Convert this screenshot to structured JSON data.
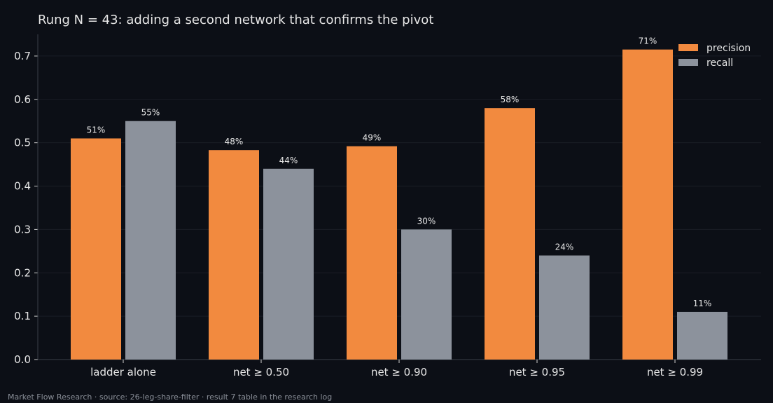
{
  "chart_data": {
    "type": "bar",
    "title": "Rung N = 43: adding a second network that confirms the pivot",
    "categories": [
      "ladder alone",
      "net ≥ 0.50",
      "net ≥ 0.90",
      "net ≥ 0.95",
      "net ≥ 0.99"
    ],
    "series": [
      {
        "name": "precision",
        "color": "#f28a3f",
        "values": [
          0.51,
          0.483,
          0.492,
          0.58,
          0.715
        ],
        "labels": [
          "51%",
          "48%",
          "49%",
          "58%",
          "71%"
        ]
      },
      {
        "name": "recall",
        "color": "#8c929c",
        "values": [
          0.55,
          0.44,
          0.3,
          0.24,
          0.11
        ],
        "labels": [
          "55%",
          "44%",
          "30%",
          "24%",
          "11%"
        ]
      }
    ],
    "ylim": [
      0,
      0.75
    ],
    "yticks": [
      0.0,
      0.1,
      0.2,
      0.3,
      0.4,
      0.5,
      0.6,
      0.7
    ],
    "ytick_labels": [
      "0.0",
      "0.1",
      "0.2",
      "0.3",
      "0.4",
      "0.5",
      "0.6",
      "0.7"
    ],
    "xlabel": "",
    "ylabel": "",
    "grid": true,
    "legend_position": "top-right"
  },
  "footer": {
    "text": "Market Flow Research · source: 26-leg-share-filter · result 7 table in the research log"
  },
  "colors": {
    "background": "#0c0f16",
    "grid": "#1a1e26",
    "axis": "#3a3f48"
  }
}
